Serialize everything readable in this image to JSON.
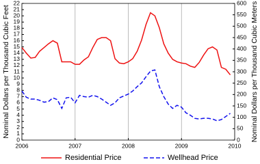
{
  "chart_data": {
    "type": "line",
    "ylabel": "Nominal Dollars per Thousand Cubic Feet",
    "y2label": "Nominal Dollars per Thousand Cubic Meters",
    "x": [
      2006,
      2006.083,
      2006.167,
      2006.25,
      2006.333,
      2006.417,
      2006.5,
      2006.583,
      2006.667,
      2006.75,
      2006.833,
      2006.917,
      2007,
      2007.083,
      2007.167,
      2007.25,
      2007.333,
      2007.417,
      2007.5,
      2007.583,
      2007.667,
      2007.75,
      2007.833,
      2007.917,
      2008,
      2008.083,
      2008.167,
      2008.25,
      2008.333,
      2008.417,
      2008.5,
      2008.583,
      2008.667,
      2008.75,
      2008.833,
      2008.917,
      2009,
      2009.083,
      2009.167,
      2009.25,
      2009.333,
      2009.417,
      2009.5,
      2009.583,
      2009.667,
      2009.75,
      2009.833,
      2009.917
    ],
    "series": [
      {
        "name": "Residential Price",
        "color": "#ee1111",
        "dash": "solid",
        "values": [
          14.9,
          14.0,
          13.2,
          13.3,
          14.3,
          14.9,
          15.5,
          16.0,
          15.6,
          12.6,
          12.6,
          12.6,
          12.2,
          12.2,
          12.9,
          13.4,
          14.9,
          16.2,
          16.5,
          16.5,
          16.0,
          13.1,
          12.4,
          12.3,
          12.6,
          13.1,
          14.3,
          16.1,
          18.6,
          20.5,
          20.0,
          18.1,
          15.5,
          14.0,
          13.0,
          12.6,
          12.4,
          12.3,
          11.9,
          11.7,
          12.5,
          13.7,
          14.7,
          15.0,
          14.5,
          11.7,
          11.4,
          10.5
        ]
      },
      {
        "name": "Wellhead Price",
        "color": "#1111ee",
        "dash": "dashed",
        "values": [
          7.9,
          6.9,
          6.6,
          6.6,
          6.4,
          6.1,
          6.2,
          6.8,
          6.5,
          5.1,
          6.8,
          6.9,
          6.0,
          7.2,
          7.0,
          6.9,
          7.2,
          7.0,
          6.6,
          6.1,
          5.6,
          6.0,
          6.8,
          7.1,
          7.4,
          7.9,
          8.6,
          9.2,
          10.2,
          11.1,
          11.3,
          8.6,
          7.0,
          5.8,
          5.1,
          5.6,
          5.3,
          4.4,
          4.0,
          3.5,
          3.4,
          3.5,
          3.5,
          3.4,
          3.1,
          3.3,
          3.8,
          4.3
        ]
      }
    ],
    "xlim": [
      2006,
      2010
    ],
    "xticks": [
      2006,
      2007,
      2008,
      2009,
      2010
    ],
    "ylim": [
      0,
      22
    ],
    "yticks": [
      0,
      1,
      2,
      3,
      4,
      5,
      6,
      7,
      8,
      9,
      10,
      11,
      12,
      13,
      14,
      15,
      16,
      17,
      18,
      19,
      20,
      21,
      22
    ],
    "y2lim": [
      0,
      600
    ],
    "y2ticks": [
      0,
      50,
      100,
      150,
      200,
      250,
      300,
      350,
      400,
      450,
      500,
      550,
      600
    ],
    "grid": "x",
    "legend": "bottom"
  }
}
